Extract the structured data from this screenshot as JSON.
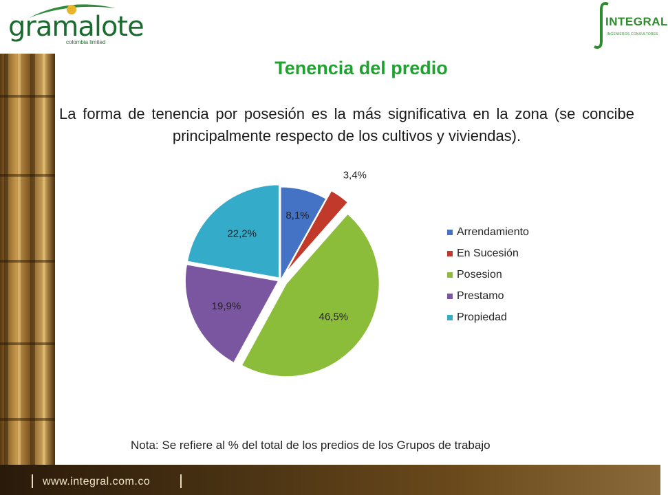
{
  "header": {
    "left_logo": {
      "word": "gramalote",
      "sub": "colombia limited"
    },
    "right_logo": {
      "word": "INTEGRAL",
      "sub": "INGENIEROS CONSULTORES"
    }
  },
  "title": "Tenencia del predio",
  "intro": "La forma de tenencia por posesión es la más significativa en la zona (se concibe principalmente respecto de los cultivos y viviendas).",
  "chart_data": {
    "type": "pie",
    "title": "",
    "legend_position": "right",
    "series": [
      {
        "name": "Arrendamiento",
        "value": 8.1,
        "label": "8,1%",
        "color": "#4472c4"
      },
      {
        "name": "En Sucesión",
        "value": 3.4,
        "label": "3,4%",
        "color": "#c0392b"
      },
      {
        "name": "Posesion",
        "value": 46.5,
        "label": "46,5%",
        "color": "#8cbd3a"
      },
      {
        "name": "Prestamo",
        "value": 19.9,
        "label": "19,9%",
        "color": "#7b56a0"
      },
      {
        "name": "Propiedad",
        "value": 22.2,
        "label": "22,2%",
        "color": "#33abc9"
      }
    ]
  },
  "note": "Nota: Se refiere al % del total de los predios de los Grupos de trabajo",
  "footer": {
    "url": "www.integral.com.co"
  }
}
